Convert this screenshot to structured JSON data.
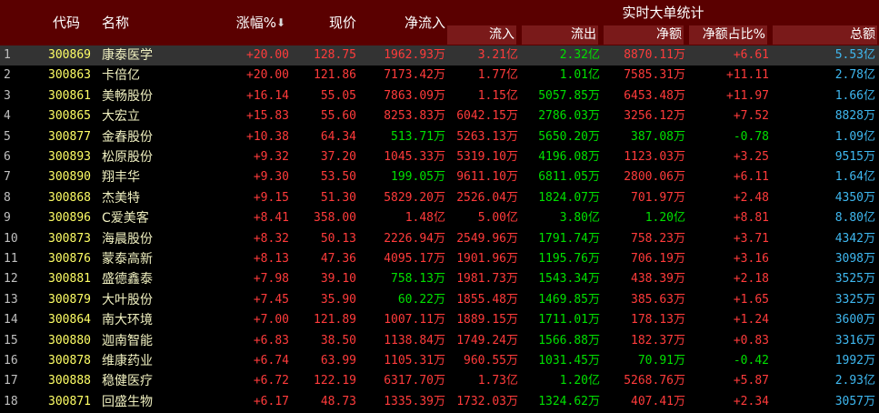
{
  "header": {
    "code": "代码",
    "name": "名称",
    "change": "涨幅%",
    "sort_arrow": "⬇",
    "price": "现价",
    "net_inflow": "净流入",
    "group": "实时大单统计",
    "group_columns": [
      "流入",
      "流出",
      "净额",
      "净额占比%",
      "总额"
    ]
  },
  "table": {
    "highlighted_row": 0,
    "rows": [
      [
        "1",
        "300869",
        "康泰医学",
        "+20.00",
        "128.75",
        "1962.93万",
        "3.21亿",
        "2.32亿",
        "8870.11万",
        "+6.61",
        "5.53亿"
      ],
      [
        "2",
        "300863",
        "卡倍亿",
        "+20.00",
        "121.86",
        "7173.42万",
        "1.77亿",
        "1.01亿",
        "7585.31万",
        "+11.11",
        "2.78亿"
      ],
      [
        "3",
        "300861",
        "美畅股份",
        "+16.14",
        "55.05",
        "7863.09万",
        "1.15亿",
        "5057.85万",
        "6453.48万",
        "+11.97",
        "1.66亿"
      ],
      [
        "4",
        "300865",
        "大宏立",
        "+15.83",
        "55.60",
        "8253.83万",
        "6042.15万",
        "2786.03万",
        "3256.12万",
        "+7.52",
        "8828万"
      ],
      [
        "5",
        "300877",
        "金春股份",
        "+10.38",
        "64.34",
        "513.71万",
        "5263.13万",
        "5650.20万",
        "387.08万",
        "-0.78",
        "1.09亿"
      ],
      [
        "6",
        "300893",
        "松原股份",
        "+9.32",
        "37.20",
        "1045.33万",
        "5319.10万",
        "4196.08万",
        "1123.03万",
        "+3.25",
        "9515万"
      ],
      [
        "7",
        "300890",
        "翔丰华",
        "+9.30",
        "53.50",
        "199.05万",
        "9611.10万",
        "6811.05万",
        "2800.06万",
        "+6.11",
        "1.64亿"
      ],
      [
        "8",
        "300868",
        "杰美特",
        "+9.15",
        "51.30",
        "5829.20万",
        "2526.04万",
        "1824.07万",
        "701.97万",
        "+2.48",
        "4350万"
      ],
      [
        "9",
        "300896",
        "C爱美客",
        "+8.41",
        "358.00",
        "1.48亿",
        "5.00亿",
        "3.80亿",
        "1.20亿",
        "+8.81",
        "8.80亿"
      ],
      [
        "10",
        "300873",
        "海晨股份",
        "+8.32",
        "50.13",
        "2226.94万",
        "2549.96万",
        "1791.74万",
        "758.23万",
        "+3.71",
        "4342万"
      ],
      [
        "11",
        "300876",
        "蒙泰高新",
        "+8.13",
        "47.36",
        "4095.17万",
        "1901.96万",
        "1195.76万",
        "706.19万",
        "+3.16",
        "3098万"
      ],
      [
        "12",
        "300881",
        "盛德鑫泰",
        "+7.98",
        "39.10",
        "758.13万",
        "1981.73万",
        "1543.34万",
        "438.39万",
        "+2.18",
        "3525万"
      ],
      [
        "13",
        "300879",
        "大叶股份",
        "+7.45",
        "35.90",
        "60.22万",
        "1855.48万",
        "1469.85万",
        "385.63万",
        "+1.65",
        "3325万"
      ],
      [
        "14",
        "300864",
        "南大环境",
        "+7.00",
        "121.89",
        "1007.11万",
        "1889.15万",
        "1711.01万",
        "178.13万",
        "+1.24",
        "3600万"
      ],
      [
        "15",
        "300880",
        "迦南智能",
        "+6.83",
        "38.50",
        "1138.84万",
        "1749.24万",
        "1566.88万",
        "182.37万",
        "+0.83",
        "3316万"
      ],
      [
        "16",
        "300878",
        "维康药业",
        "+6.74",
        "63.99",
        "1105.31万",
        "960.55万",
        "1031.45万",
        "70.91万",
        "-0.42",
        "1992万"
      ],
      [
        "17",
        "300888",
        "稳健医疗",
        "+6.72",
        "122.19",
        "6317.70万",
        "1.73亿",
        "1.20亿",
        "5268.76万",
        "+5.87",
        "2.93亿"
      ],
      [
        "18",
        "300871",
        "回盛生物",
        "+6.17",
        "48.73",
        "1335.39万",
        "1732.03万",
        "1324.62万",
        "407.41万",
        "+2.34",
        "3057万"
      ]
    ],
    "column_colors": [
      "#c0c0c0",
      "#ffff66",
      "#f0f0c0",
      "#ff3b3b",
      "#ff3b3b",
      "#ff3b3b",
      "#ff3b3b",
      "#00e000",
      "#ff3b3b",
      "#ff3b3b",
      "#3fb8f0"
    ],
    "green_cells": [
      [
        4,
        5
      ],
      [
        6,
        5
      ],
      [
        11,
        5
      ],
      [
        12,
        5
      ],
      [
        4,
        8
      ],
      [
        8,
        8
      ],
      [
        15,
        8
      ],
      [
        4,
        9
      ],
      [
        15,
        9
      ]
    ],
    "green_color": "#00e000"
  }
}
